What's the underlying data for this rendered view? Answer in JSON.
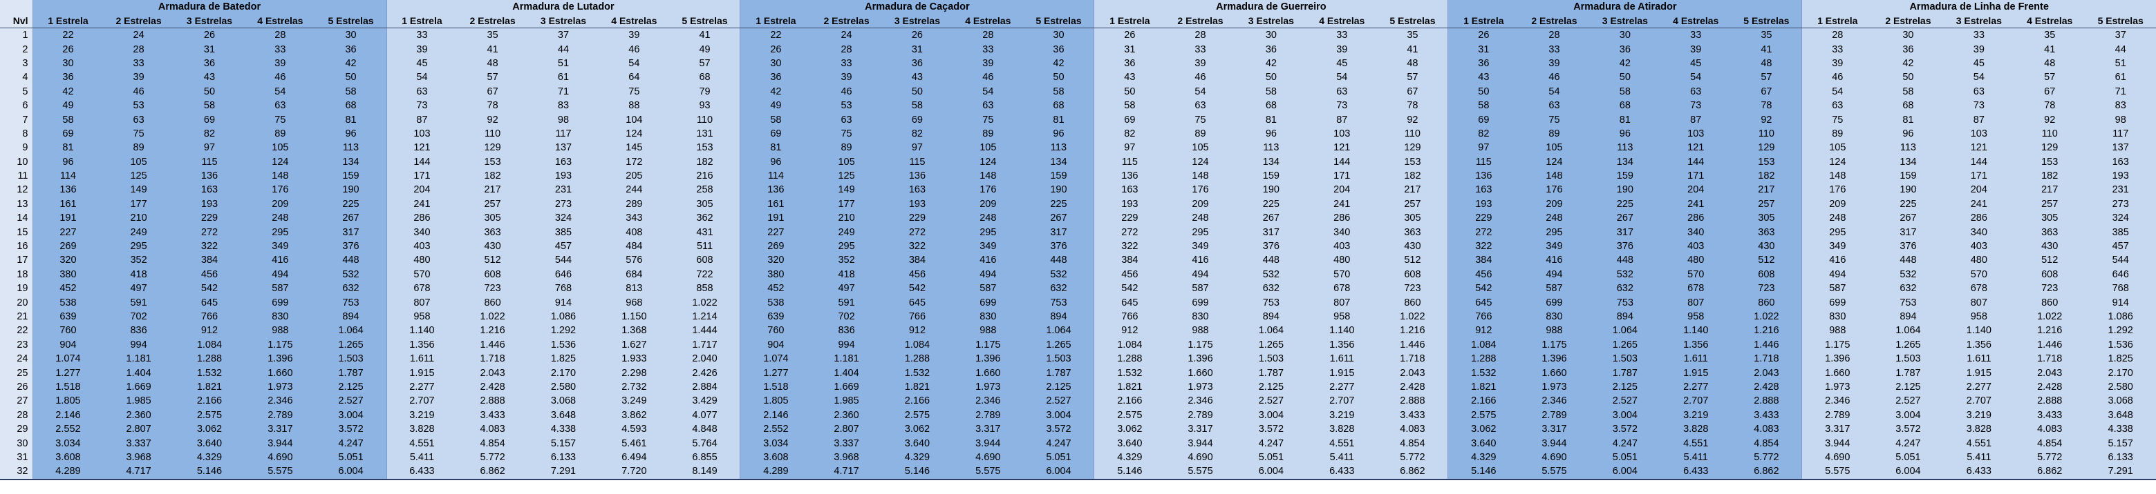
{
  "level_header": "Nvl",
  "star_headers": [
    "1 Estrela",
    "2 Estrelas",
    "3 Estrelas",
    "4 Estrelas",
    "5 Estrelas"
  ],
  "groups": [
    {
      "title": "Armadura de Batedor",
      "color": "#8db4e2"
    },
    {
      "title": "Armadura de Lutador",
      "color": "#c6d9f1"
    },
    {
      "title": "Armadura de Caçador",
      "color": "#8db4e2"
    },
    {
      "title": "Armadura de Guerreiro",
      "color": "#c6d9f1"
    },
    {
      "title": "Armadura de Atirador",
      "color": "#8db4e2"
    },
    {
      "title": "Armadura de Linha de Frente",
      "color": "#c6d9f1"
    }
  ],
  "rows": [
    [
      "1",
      "22",
      "24",
      "26",
      "28",
      "30",
      "33",
      "35",
      "37",
      "39",
      "41",
      "22",
      "24",
      "26",
      "28",
      "30",
      "26",
      "28",
      "30",
      "33",
      "35",
      "26",
      "28",
      "30",
      "33",
      "35",
      "28",
      "30",
      "33",
      "35",
      "37"
    ],
    [
      "2",
      "26",
      "28",
      "31",
      "33",
      "36",
      "39",
      "41",
      "44",
      "46",
      "49",
      "26",
      "28",
      "31",
      "33",
      "36",
      "31",
      "33",
      "36",
      "39",
      "41",
      "31",
      "33",
      "36",
      "39",
      "41",
      "33",
      "36",
      "39",
      "41",
      "44"
    ],
    [
      "3",
      "30",
      "33",
      "36",
      "39",
      "42",
      "45",
      "48",
      "51",
      "54",
      "57",
      "30",
      "33",
      "36",
      "39",
      "42",
      "36",
      "39",
      "42",
      "45",
      "48",
      "36",
      "39",
      "42",
      "45",
      "48",
      "39",
      "42",
      "45",
      "48",
      "51"
    ],
    [
      "4",
      "36",
      "39",
      "43",
      "46",
      "50",
      "54",
      "57",
      "61",
      "64",
      "68",
      "36",
      "39",
      "43",
      "46",
      "50",
      "43",
      "46",
      "50",
      "54",
      "57",
      "43",
      "46",
      "50",
      "54",
      "57",
      "46",
      "50",
      "54",
      "57",
      "61"
    ],
    [
      "5",
      "42",
      "46",
      "50",
      "54",
      "58",
      "63",
      "67",
      "71",
      "75",
      "79",
      "42",
      "46",
      "50",
      "54",
      "58",
      "50",
      "54",
      "58",
      "63",
      "67",
      "50",
      "54",
      "58",
      "63",
      "67",
      "54",
      "58",
      "63",
      "67",
      "71"
    ],
    [
      "6",
      "49",
      "53",
      "58",
      "63",
      "68",
      "73",
      "78",
      "83",
      "88",
      "93",
      "49",
      "53",
      "58",
      "63",
      "68",
      "58",
      "63",
      "68",
      "73",
      "78",
      "58",
      "63",
      "68",
      "73",
      "78",
      "63",
      "68",
      "73",
      "78",
      "83"
    ],
    [
      "7",
      "58",
      "63",
      "69",
      "75",
      "81",
      "87",
      "92",
      "98",
      "104",
      "110",
      "58",
      "63",
      "69",
      "75",
      "81",
      "69",
      "75",
      "81",
      "87",
      "92",
      "69",
      "75",
      "81",
      "87",
      "92",
      "75",
      "81",
      "87",
      "92",
      "98"
    ],
    [
      "8",
      "69",
      "75",
      "82",
      "89",
      "96",
      "103",
      "110",
      "117",
      "124",
      "131",
      "69",
      "75",
      "82",
      "89",
      "96",
      "82",
      "89",
      "96",
      "103",
      "110",
      "82",
      "89",
      "96",
      "103",
      "110",
      "89",
      "96",
      "103",
      "110",
      "117"
    ],
    [
      "9",
      "81",
      "89",
      "97",
      "105",
      "113",
      "121",
      "129",
      "137",
      "145",
      "153",
      "81",
      "89",
      "97",
      "105",
      "113",
      "97",
      "105",
      "113",
      "121",
      "129",
      "97",
      "105",
      "113",
      "121",
      "129",
      "105",
      "113",
      "121",
      "129",
      "137"
    ],
    [
      "10",
      "96",
      "105",
      "115",
      "124",
      "134",
      "144",
      "153",
      "163",
      "172",
      "182",
      "96",
      "105",
      "115",
      "124",
      "134",
      "115",
      "124",
      "134",
      "144",
      "153",
      "115",
      "124",
      "134",
      "144",
      "153",
      "124",
      "134",
      "144",
      "153",
      "163"
    ],
    [
      "11",
      "114",
      "125",
      "136",
      "148",
      "159",
      "171",
      "182",
      "193",
      "205",
      "216",
      "114",
      "125",
      "136",
      "148",
      "159",
      "136",
      "148",
      "159",
      "171",
      "182",
      "136",
      "148",
      "159",
      "171",
      "182",
      "148",
      "159",
      "171",
      "182",
      "193"
    ],
    [
      "12",
      "136",
      "149",
      "163",
      "176",
      "190",
      "204",
      "217",
      "231",
      "244",
      "258",
      "136",
      "149",
      "163",
      "176",
      "190",
      "163",
      "176",
      "190",
      "204",
      "217",
      "163",
      "176",
      "190",
      "204",
      "217",
      "176",
      "190",
      "204",
      "217",
      "231"
    ],
    [
      "13",
      "161",
      "177",
      "193",
      "209",
      "225",
      "241",
      "257",
      "273",
      "289",
      "305",
      "161",
      "177",
      "193",
      "209",
      "225",
      "193",
      "209",
      "225",
      "241",
      "257",
      "193",
      "209",
      "225",
      "241",
      "257",
      "209",
      "225",
      "241",
      "257",
      "273"
    ],
    [
      "14",
      "191",
      "210",
      "229",
      "248",
      "267",
      "286",
      "305",
      "324",
      "343",
      "362",
      "191",
      "210",
      "229",
      "248",
      "267",
      "229",
      "248",
      "267",
      "286",
      "305",
      "229",
      "248",
      "267",
      "286",
      "305",
      "248",
      "267",
      "286",
      "305",
      "324"
    ],
    [
      "15",
      "227",
      "249",
      "272",
      "295",
      "317",
      "340",
      "363",
      "385",
      "408",
      "431",
      "227",
      "249",
      "272",
      "295",
      "317",
      "272",
      "295",
      "317",
      "340",
      "363",
      "272",
      "295",
      "317",
      "340",
      "363",
      "295",
      "317",
      "340",
      "363",
      "385"
    ],
    [
      "16",
      "269",
      "295",
      "322",
      "349",
      "376",
      "403",
      "430",
      "457",
      "484",
      "511",
      "269",
      "295",
      "322",
      "349",
      "376",
      "322",
      "349",
      "376",
      "403",
      "430",
      "322",
      "349",
      "376",
      "403",
      "430",
      "349",
      "376",
      "403",
      "430",
      "457"
    ],
    [
      "17",
      "320",
      "352",
      "384",
      "416",
      "448",
      "480",
      "512",
      "544",
      "576",
      "608",
      "320",
      "352",
      "384",
      "416",
      "448",
      "384",
      "416",
      "448",
      "480",
      "512",
      "384",
      "416",
      "448",
      "480",
      "512",
      "416",
      "448",
      "480",
      "512",
      "544"
    ],
    [
      "18",
      "380",
      "418",
      "456",
      "494",
      "532",
      "570",
      "608",
      "646",
      "684",
      "722",
      "380",
      "418",
      "456",
      "494",
      "532",
      "456",
      "494",
      "532",
      "570",
      "608",
      "456",
      "494",
      "532",
      "570",
      "608",
      "494",
      "532",
      "570",
      "608",
      "646"
    ],
    [
      "19",
      "452",
      "497",
      "542",
      "587",
      "632",
      "678",
      "723",
      "768",
      "813",
      "858",
      "452",
      "497",
      "542",
      "587",
      "632",
      "542",
      "587",
      "632",
      "678",
      "723",
      "542",
      "587",
      "632",
      "678",
      "723",
      "587",
      "632",
      "678",
      "723",
      "768"
    ],
    [
      "20",
      "538",
      "591",
      "645",
      "699",
      "753",
      "807",
      "860",
      "914",
      "968",
      "1.022",
      "538",
      "591",
      "645",
      "699",
      "753",
      "645",
      "699",
      "753",
      "807",
      "860",
      "645",
      "699",
      "753",
      "807",
      "860",
      "699",
      "753",
      "807",
      "860",
      "914"
    ],
    [
      "21",
      "639",
      "702",
      "766",
      "830",
      "894",
      "958",
      "1.022",
      "1.086",
      "1.150",
      "1.214",
      "639",
      "702",
      "766",
      "830",
      "894",
      "766",
      "830",
      "894",
      "958",
      "1.022",
      "766",
      "830",
      "894",
      "958",
      "1.022",
      "830",
      "894",
      "958",
      "1.022",
      "1.086"
    ],
    [
      "22",
      "760",
      "836",
      "912",
      "988",
      "1.064",
      "1.140",
      "1.216",
      "1.292",
      "1.368",
      "1.444",
      "760",
      "836",
      "912",
      "988",
      "1.064",
      "912",
      "988",
      "1.064",
      "1.140",
      "1.216",
      "912",
      "988",
      "1.064",
      "1.140",
      "1.216",
      "988",
      "1.064",
      "1.140",
      "1.216",
      "1.292"
    ],
    [
      "23",
      "904",
      "994",
      "1.084",
      "1.175",
      "1.265",
      "1.356",
      "1.446",
      "1.536",
      "1.627",
      "1.717",
      "904",
      "994",
      "1.084",
      "1.175",
      "1.265",
      "1.084",
      "1.175",
      "1.265",
      "1.356",
      "1.446",
      "1.084",
      "1.175",
      "1.265",
      "1.356",
      "1.446",
      "1.175",
      "1.265",
      "1.356",
      "1.446",
      "1.536"
    ],
    [
      "24",
      "1.074",
      "1.181",
      "1.288",
      "1.396",
      "1.503",
      "1.611",
      "1.718",
      "1.825",
      "1.933",
      "2.040",
      "1.074",
      "1.181",
      "1.288",
      "1.396",
      "1.503",
      "1.288",
      "1.396",
      "1.503",
      "1.611",
      "1.718",
      "1.288",
      "1.396",
      "1.503",
      "1.611",
      "1.718",
      "1.396",
      "1.503",
      "1.611",
      "1.718",
      "1.825"
    ],
    [
      "25",
      "1.277",
      "1.404",
      "1.532",
      "1.660",
      "1.787",
      "1.915",
      "2.043",
      "2.170",
      "2.298",
      "2.426",
      "1.277",
      "1.404",
      "1.532",
      "1.660",
      "1.787",
      "1.532",
      "1.660",
      "1.787",
      "1.915",
      "2.043",
      "1.532",
      "1.660",
      "1.787",
      "1.915",
      "2.043",
      "1.660",
      "1.787",
      "1.915",
      "2.043",
      "2.170"
    ],
    [
      "26",
      "1.518",
      "1.669",
      "1.821",
      "1.973",
      "2.125",
      "2.277",
      "2.428",
      "2.580",
      "2.732",
      "2.884",
      "1.518",
      "1.669",
      "1.821",
      "1.973",
      "2.125",
      "1.821",
      "1.973",
      "2.125",
      "2.277",
      "2.428",
      "1.821",
      "1.973",
      "2.125",
      "2.277",
      "2.428",
      "1.973",
      "2.125",
      "2.277",
      "2.428",
      "2.580"
    ],
    [
      "27",
      "1.805",
      "1.985",
      "2.166",
      "2.346",
      "2.527",
      "2.707",
      "2.888",
      "3.068",
      "3.249",
      "3.429",
      "1.805",
      "1.985",
      "2.166",
      "2.346",
      "2.527",
      "2.166",
      "2.346",
      "2.527",
      "2.707",
      "2.888",
      "2.166",
      "2.346",
      "2.527",
      "2.707",
      "2.888",
      "2.346",
      "2.527",
      "2.707",
      "2.888",
      "3.068"
    ],
    [
      "28",
      "2.146",
      "2.360",
      "2.575",
      "2.789",
      "3.004",
      "3.219",
      "3.433",
      "3.648",
      "3.862",
      "4.077",
      "2.146",
      "2.360",
      "2.575",
      "2.789",
      "3.004",
      "2.575",
      "2.789",
      "3.004",
      "3.219",
      "3.433",
      "2.575",
      "2.789",
      "3.004",
      "3.219",
      "3.433",
      "2.789",
      "3.004",
      "3.219",
      "3.433",
      "3.648"
    ],
    [
      "29",
      "2.552",
      "2.807",
      "3.062",
      "3.317",
      "3.572",
      "3.828",
      "4.083",
      "4.338",
      "4.593",
      "4.848",
      "2.552",
      "2.807",
      "3.062",
      "3.317",
      "3.572",
      "3.062",
      "3.317",
      "3.572",
      "3.828",
      "4.083",
      "3.062",
      "3.317",
      "3.572",
      "3.828",
      "4.083",
      "3.317",
      "3.572",
      "3.828",
      "4.083",
      "4.338"
    ],
    [
      "30",
      "3.034",
      "3.337",
      "3.640",
      "3.944",
      "4.247",
      "4.551",
      "4.854",
      "5.157",
      "5.461",
      "5.764",
      "3.034",
      "3.337",
      "3.640",
      "3.944",
      "4.247",
      "3.640",
      "3.944",
      "4.247",
      "4.551",
      "4.854",
      "3.640",
      "3.944",
      "4.247",
      "4.551",
      "4.854",
      "3.944",
      "4.247",
      "4.551",
      "4.854",
      "5.157"
    ],
    [
      "31",
      "3.608",
      "3.968",
      "4.329",
      "4.690",
      "5.051",
      "5.411",
      "5.772",
      "6.133",
      "6.494",
      "6.855",
      "3.608",
      "3.968",
      "4.329",
      "4.690",
      "5.051",
      "4.329",
      "4.690",
      "5.051",
      "5.411",
      "5.772",
      "4.329",
      "4.690",
      "5.051",
      "5.411",
      "5.772",
      "4.690",
      "5.051",
      "5.411",
      "5.772",
      "6.133"
    ],
    [
      "32",
      "4.289",
      "4.717",
      "5.146",
      "5.575",
      "6.004",
      "6.433",
      "6.862",
      "7.291",
      "7.720",
      "8.149",
      "4.289",
      "4.717",
      "5.146",
      "5.575",
      "6.004",
      "5.146",
      "5.575",
      "6.004",
      "6.433",
      "6.862",
      "5.146",
      "5.575",
      "6.004",
      "6.433",
      "6.862",
      "5.575",
      "6.004",
      "6.433",
      "6.862",
      "7.291"
    ]
  ]
}
